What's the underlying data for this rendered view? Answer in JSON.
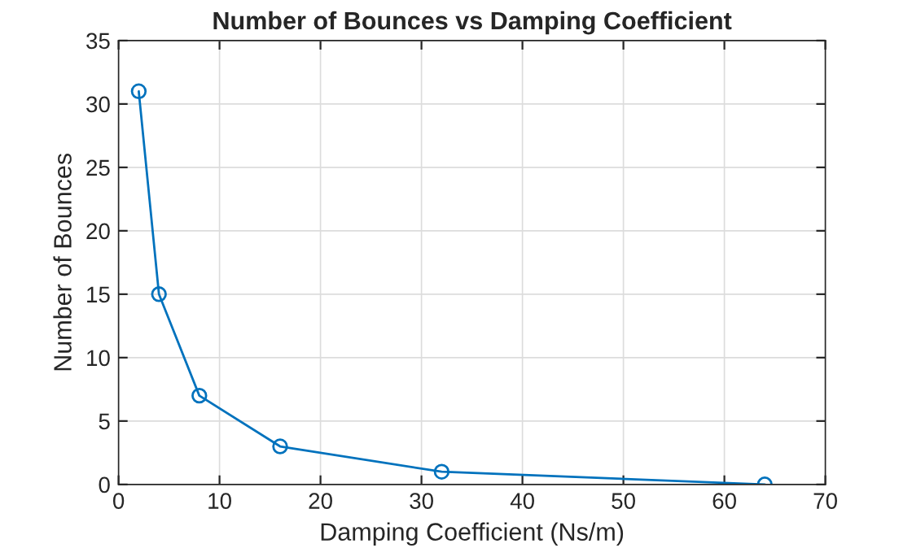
{
  "chart_data": {
    "type": "line",
    "title": "Number of Bounces vs Damping Coefficient",
    "xlabel": "Damping Coefficient (Ns/m)",
    "ylabel": "Number of Bounces",
    "x": [
      2,
      4,
      8,
      16,
      32,
      64
    ],
    "series": [
      {
        "color": "#0072bd",
        "values": [
          31,
          15,
          7,
          3,
          1,
          0
        ]
      }
    ],
    "xlim": [
      0,
      70
    ],
    "xticks": [
      0,
      10,
      20,
      30,
      40,
      50,
      60,
      70
    ],
    "ylim": [
      0,
      35
    ],
    "yticks": [
      0,
      5,
      10,
      15,
      20,
      25,
      30,
      35
    ],
    "grid": true,
    "marker": "circle",
    "line_style": "solid",
    "legend": false
  }
}
